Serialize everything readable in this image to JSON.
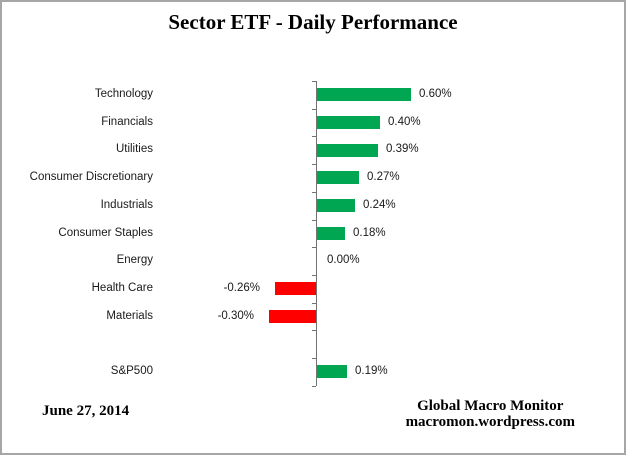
{
  "chart_data": {
    "type": "bar",
    "orientation": "horizontal",
    "title": "Sector ETF - Daily Performance",
    "unit": "percent",
    "categories": [
      "Technology",
      "Financials",
      "Utilities",
      "Consumer Discretionary",
      "Industrials",
      "Consumer Staples",
      "Energy",
      "Health Care",
      "Materials",
      "S&P500"
    ],
    "values": [
      0.6,
      0.4,
      0.39,
      0.27,
      0.24,
      0.18,
      0.0,
      -0.26,
      -0.3,
      0.19
    ],
    "value_labels": [
      "0.60%",
      "0.40%",
      "0.39%",
      "0.27%",
      "0.24%",
      "0.18%",
      "0.00%",
      "-0.26%",
      "-0.30%",
      "0.19%"
    ],
    "layout": {
      "grid": false,
      "legend": "none",
      "value_label_position": "outside-end",
      "gap_row_before": "S&P500",
      "axis_zero_line": true
    },
    "colors": {
      "positive": "#00A651",
      "negative": "#FF0000",
      "axis": "#737373"
    }
  },
  "footer": {
    "date": "June 27, 2014",
    "credit_line1": "Global Macro Monitor",
    "credit_line2": "macromon.wordpress.com"
  }
}
